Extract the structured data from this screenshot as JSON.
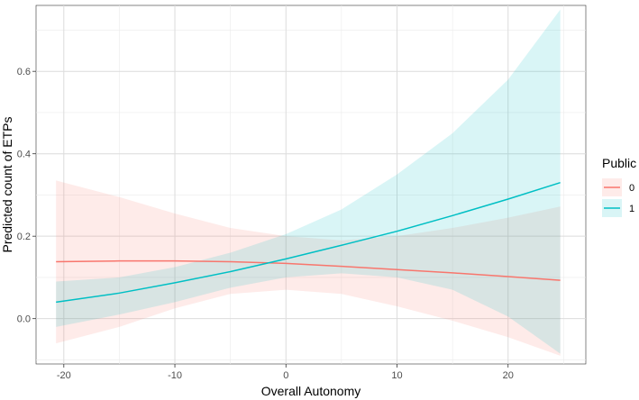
{
  "chart_data": {
    "type": "line",
    "xlabel": "Overall Autonomy",
    "ylabel": "Predicted count of ETPs",
    "xlim": [
      -22.5,
      27
    ],
    "ylim": [
      -0.11,
      0.76
    ],
    "x_ticks": [
      -20,
      -10,
      0,
      10,
      20
    ],
    "x_tick_labels": [
      "-20",
      "-10",
      "0",
      "10",
      "20"
    ],
    "y_ticks": [
      0.0,
      0.2,
      0.4,
      0.6
    ],
    "y_tick_labels": [
      "0.0",
      "0.2",
      "0.4",
      "0.6"
    ],
    "grid": true,
    "legend": {
      "title": "Public",
      "position": "right"
    },
    "series": [
      {
        "name": "0",
        "color": "#F8766D",
        "x": [
          -20.7,
          -15,
          -10,
          -5,
          0,
          5,
          10,
          15,
          20,
          24.7
        ],
        "y": [
          0.138,
          0.14,
          0.14,
          0.138,
          0.134,
          0.127,
          0.119,
          0.111,
          0.102,
          0.093
        ],
        "ymin": [
          -0.06,
          -0.02,
          0.025,
          0.06,
          0.07,
          0.06,
          0.03,
          -0.005,
          -0.045,
          -0.09
        ],
        "ymax": [
          0.335,
          0.295,
          0.255,
          0.22,
          0.2,
          0.19,
          0.2,
          0.22,
          0.245,
          0.272
        ]
      },
      {
        "name": "1",
        "color": "#00BFC4",
        "x": [
          -20.7,
          -15,
          -10,
          -5,
          0,
          5,
          10,
          15,
          20,
          24.7
        ],
        "y": [
          0.04,
          0.062,
          0.087,
          0.114,
          0.145,
          0.178,
          0.212,
          0.25,
          0.29,
          0.33
        ],
        "ymin": [
          -0.02,
          0.01,
          0.04,
          0.075,
          0.1,
          0.11,
          0.1,
          0.07,
          0.005,
          -0.085
        ],
        "ymax": [
          0.09,
          0.1,
          0.125,
          0.16,
          0.205,
          0.265,
          0.35,
          0.45,
          0.58,
          0.75
        ]
      }
    ]
  }
}
